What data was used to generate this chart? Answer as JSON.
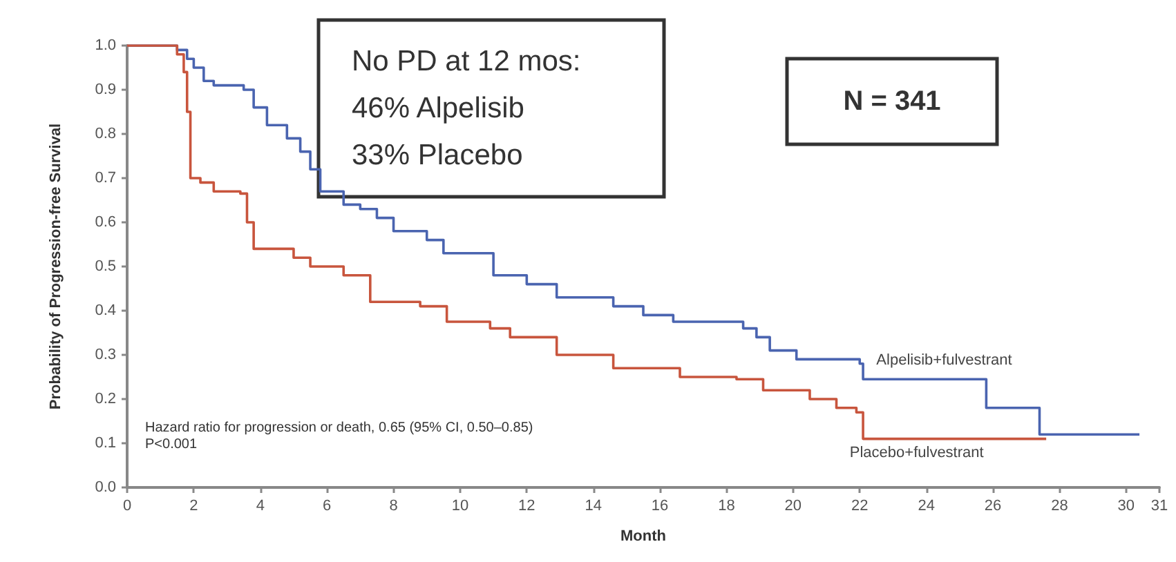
{
  "chart_data": {
    "type": "step",
    "xlabel": "Month",
    "ylabel": "Probability of Progression-free Survival",
    "xlim": [
      0,
      31
    ],
    "xticks": [
      0,
      2,
      4,
      6,
      8,
      10,
      12,
      14,
      16,
      18,
      20,
      22,
      24,
      26,
      28,
      30,
      31
    ],
    "ylim": [
      0,
      1
    ],
    "yticks": [
      {
        "value": 0,
        "label": "0.0"
      },
      0.1,
      0.2,
      0.3,
      0.4,
      0.5,
      0.6,
      0.7,
      0.8,
      0.9,
      {
        "value": 1,
        "label": "1.0"
      }
    ],
    "grid": false,
    "legend": false,
    "marker": "none",
    "line_style": "solid",
    "annotations": [
      "No PD at 12 mos:\n46% Alpelisib\n33% Placebo",
      "N = 341",
      "Hazard ratio for progression or death, 0.65 (95% CI, 0.50–0.85)\nP<0.001"
    ],
    "series": [
      {
        "name": "Alpelisib+fulvestrant",
        "color": "#4a64b0",
        "x": [
          0,
          1.5,
          1.8,
          2.0,
          2.3,
          2.6,
          3.5,
          3.8,
          4.2,
          4.8,
          5.2,
          5.5,
          5.8,
          6.5,
          7.0,
          7.5,
          8.0,
          9.0,
          9.5,
          11.0,
          12.0,
          12.9,
          14.6,
          15.5,
          16.4,
          18.5,
          18.9,
          19.3,
          20.1,
          22.0,
          22.1,
          25.8,
          27.4,
          30.4
        ],
        "values": [
          1.0,
          0.99,
          0.97,
          0.95,
          0.92,
          0.91,
          0.9,
          0.86,
          0.82,
          0.79,
          0.76,
          0.72,
          0.67,
          0.64,
          0.63,
          0.61,
          0.58,
          0.56,
          0.53,
          0.48,
          0.46,
          0.43,
          0.41,
          0.39,
          0.375,
          0.36,
          0.34,
          0.31,
          0.29,
          0.28,
          0.245,
          0.18,
          0.12,
          0.12
        ]
      },
      {
        "name": "Placebo+fulvestrant",
        "color": "#c8553d",
        "x": [
          0,
          1.0,
          1.5,
          1.7,
          1.8,
          1.9,
          2.2,
          2.6,
          3.4,
          3.6,
          3.8,
          5.0,
          5.5,
          6.5,
          7.3,
          8.8,
          9.6,
          10.9,
          11.5,
          12.9,
          14.6,
          16.6,
          18.3,
          19.1,
          20.5,
          21.3,
          21.9,
          22.1,
          27.6
        ],
        "values": [
          1.0,
          1.0,
          0.98,
          0.94,
          0.85,
          0.7,
          0.69,
          0.67,
          0.665,
          0.6,
          0.54,
          0.52,
          0.5,
          0.48,
          0.42,
          0.41,
          0.375,
          0.36,
          0.34,
          0.3,
          0.27,
          0.25,
          0.245,
          0.22,
          0.2,
          0.18,
          0.17,
          0.11,
          0.11
        ]
      }
    ]
  }
}
